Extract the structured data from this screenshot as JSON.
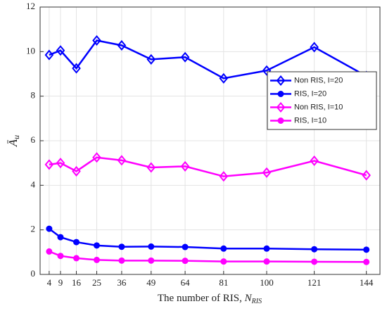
{
  "chart_data": {
    "type": "line",
    "x_label": {
      "text": "The number of RIS, ",
      "var": "N",
      "sub": "RIS"
    },
    "y_label": {
      "text": "Ā",
      "sub": "u"
    },
    "x": [
      4,
      9,
      16,
      25,
      36,
      49,
      64,
      81,
      100,
      121,
      144
    ],
    "series": [
      {
        "name": "Non RIS, I=20",
        "color": "#0000ff",
        "marker": "diamond",
        "values": [
          9.85,
          10.05,
          9.25,
          10.5,
          10.28,
          9.65,
          9.75,
          8.8,
          9.15,
          10.2,
          8.9
        ]
      },
      {
        "name": "RIS, I=20",
        "color": "#0000ff",
        "marker": "circle",
        "values": [
          2.05,
          1.67,
          1.45,
          1.3,
          1.24,
          1.25,
          1.23,
          1.16,
          1.16,
          1.13,
          1.11
        ]
      },
      {
        "name": "Non RIS, I=10",
        "color": "#ff00ff",
        "marker": "diamond",
        "values": [
          4.93,
          5.0,
          4.63,
          5.25,
          5.12,
          4.8,
          4.85,
          4.4,
          4.57,
          5.1,
          4.45
        ]
      },
      {
        "name": "RIS, I=10",
        "color": "#ff00ff",
        "marker": "circle",
        "values": [
          1.03,
          0.83,
          0.73,
          0.65,
          0.62,
          0.62,
          0.61,
          0.58,
          0.58,
          0.57,
          0.56
        ]
      }
    ],
    "xlim": [
      0,
      150
    ],
    "xticks": [
      4,
      9,
      16,
      25,
      36,
      49,
      64,
      81,
      100,
      121,
      144
    ],
    "ylim": [
      0,
      12
    ],
    "yticks": [
      0,
      2,
      4,
      6,
      8,
      10,
      12
    ],
    "grid": true,
    "legend": "center right"
  }
}
